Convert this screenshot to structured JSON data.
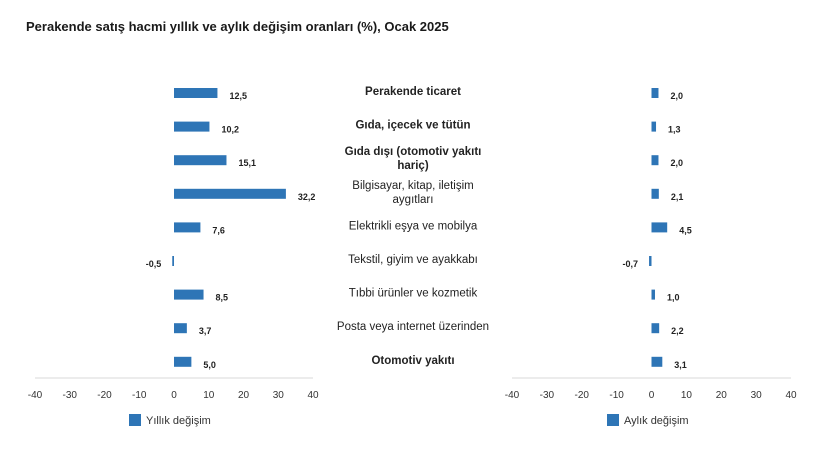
{
  "chart_data": {
    "type": "bar",
    "orientation": "horizontal",
    "title": "Perakende satış hacmi yıllık ve aylık değişim oranları (%), Ocak 2025",
    "categories": [
      {
        "label": "Perakende ticaret",
        "lines": [
          "Perakende ticaret"
        ],
        "bold": true
      },
      {
        "label": "Gıda, içecek ve tütün",
        "lines": [
          "Gıda, içecek ve tütün"
        ],
        "bold": true
      },
      {
        "label": "Gıda dışı (otomotiv yakıtı hariç)",
        "lines": [
          "Gıda dışı (otomotiv yakıtı",
          "hariç)"
        ],
        "bold": true
      },
      {
        "label": "Bilgisayar, kitap, iletişim aygıtları",
        "lines": [
          "Bilgisayar, kitap, iletişim",
          "aygıtları"
        ],
        "bold": false
      },
      {
        "label": "Elektrikli eşya ve mobilya",
        "lines": [
          "Elektrikli eşya ve mobilya"
        ],
        "bold": false
      },
      {
        "label": "Tekstil, giyim ve ayakkabı",
        "lines": [
          "Tekstil, giyim ve ayakkabı"
        ],
        "bold": false
      },
      {
        "label": "Tıbbi ürünler ve kozmetik",
        "lines": [
          "Tıbbi ürünler ve kozmetik"
        ],
        "bold": false
      },
      {
        "label": "Posta veya internet üzerinden",
        "lines": [
          "Posta veya internet üzerinden"
        ],
        "bold": false
      },
      {
        "label": "Otomotiv yakıtı",
        "lines": [
          "Otomotiv yakıtı"
        ],
        "bold": true
      }
    ],
    "panels": [
      {
        "legend": "Yıllık değişim",
        "values": [
          12.5,
          10.2,
          15.1,
          32.2,
          7.6,
          -0.5,
          8.5,
          3.7,
          5.0
        ],
        "value_labels": [
          "12,5",
          "10,2",
          "15,1",
          "32,2",
          "7,6",
          "-0,5",
          "8,5",
          "3,7",
          "5,0"
        ]
      },
      {
        "legend": "Aylık değişim",
        "values": [
          2.0,
          1.3,
          2.0,
          2.1,
          4.5,
          -0.7,
          1.0,
          2.2,
          3.1
        ],
        "value_labels": [
          "2,0",
          "1,3",
          "2,0",
          "2,1",
          "4,5",
          "-0,7",
          "1,0",
          "2,2",
          "3,1"
        ]
      }
    ],
    "xlim": [
      -40,
      40
    ],
    "xticks": [
      -40,
      -30,
      -20,
      -10,
      0,
      10,
      20,
      30,
      40
    ],
    "grid": false,
    "legend_position": "bottom-left",
    "colors": {
      "bar": "#2e75b6",
      "axis": "#d9d9d9"
    }
  }
}
